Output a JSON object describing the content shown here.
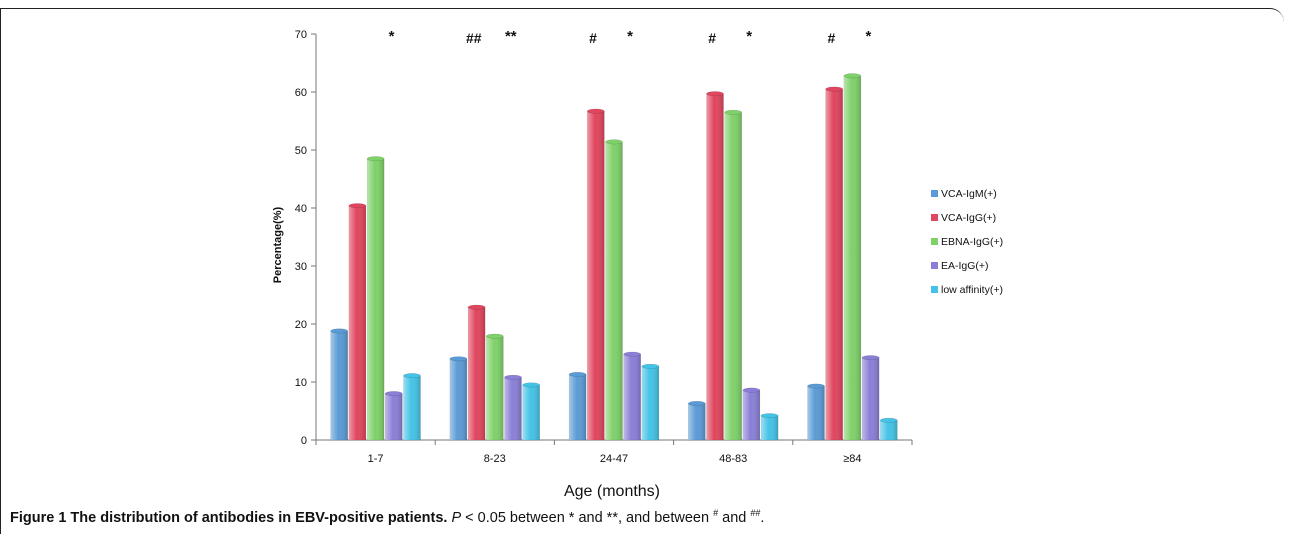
{
  "chart_data": {
    "type": "bar",
    "categories": [
      "1-7",
      "8-23",
      "24-47",
      "48-83",
      "≥84"
    ],
    "xlabel": "Age (months)",
    "ylabel": "Percentage(%)",
    "ylim": [
      0,
      70
    ],
    "yticks": [
      0,
      10,
      20,
      30,
      40,
      50,
      60,
      70
    ],
    "grid": false,
    "legend_position": "right",
    "series": [
      {
        "name": "VCA-IgM(+)",
        "color": "#5b9bd5",
        "values": [
          18.8,
          14.0,
          11.3,
          6.3,
          9.3
        ]
      },
      {
        "name": "VCA-IgG(+)",
        "color": "#e0465e",
        "values": [
          40.4,
          22.9,
          56.7,
          59.7,
          60.5
        ]
      },
      {
        "name": "EBNA-IgG(+)",
        "color": "#7fd16a",
        "values": [
          48.5,
          17.9,
          51.4,
          56.5,
          62.8
        ]
      },
      {
        "name": "EA-IgG(+)",
        "color": "#8a7fd6",
        "values": [
          8.0,
          10.8,
          14.8,
          8.6,
          14.2
        ]
      },
      {
        "name": "low affinity(+)",
        "color": "#45c3e6",
        "values": [
          11.1,
          9.5,
          12.7,
          4.2,
          3.4
        ]
      }
    ],
    "annotations": [
      {
        "category": "1-7",
        "marks": [
          "",
          "*"
        ]
      },
      {
        "category": "8-23",
        "marks": [
          "##",
          "**"
        ]
      },
      {
        "category": "24-47",
        "marks": [
          "#",
          "*"
        ]
      },
      {
        "category": "48-83",
        "marks": [
          "#",
          "*"
        ]
      },
      {
        "category": "≥84",
        "marks": [
          "#",
          "*"
        ]
      }
    ]
  },
  "caption": {
    "label": "Figure 1 The distribution of antibodies in EBV-positive patients.",
    "p": "P",
    "text1": " < 0.05 between * and **, and between ",
    "sup1": "#",
    "text2": " and ",
    "sup2": "##",
    "text3": "."
  }
}
